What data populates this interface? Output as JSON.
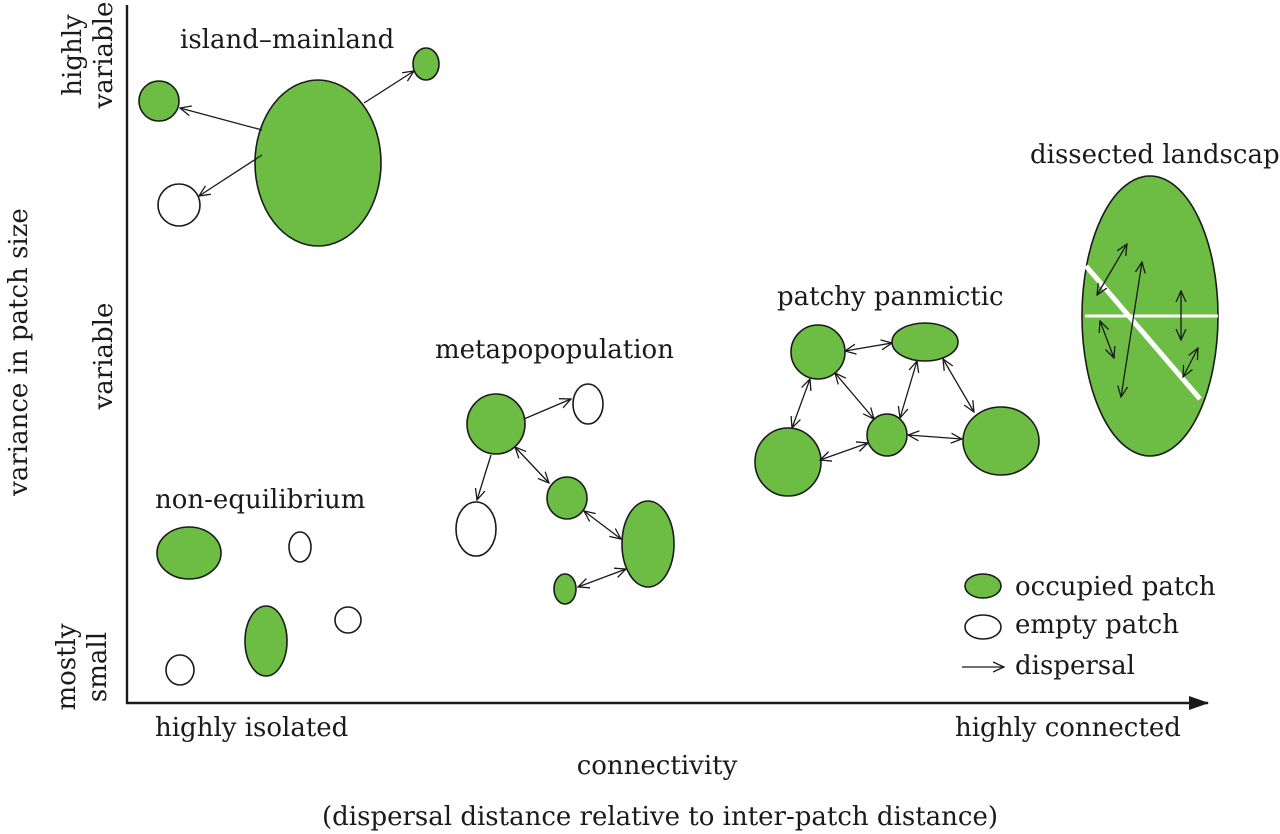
{
  "axes": {
    "y_title": "variance in patch size",
    "y_top_line1": "highly",
    "y_top_line2": "variable",
    "y_mid": "variable",
    "y_bottom_line1": "mostly",
    "y_bottom_line2": "small",
    "x_left": "highly isolated",
    "x_right": "highly connected",
    "x_title": "connectivity",
    "x_subtitle": "(dispersal distance relative to inter-patch distance)"
  },
  "scenarios": {
    "island_mainland": "island–mainland",
    "metapopulation": "metapopopulation",
    "non_equilibrium": "non-equilibrium",
    "patchy_panmictic": "patchy panmictic",
    "dissected_landscape": "dissected landscape"
  },
  "legend": {
    "occupied": "occupied patch",
    "empty": "empty patch",
    "dispersal": "dispersal"
  },
  "colors": {
    "occupied_fill": "#6dbd45",
    "empty_fill": "#ffffff",
    "outline": "#1a1a1a"
  }
}
